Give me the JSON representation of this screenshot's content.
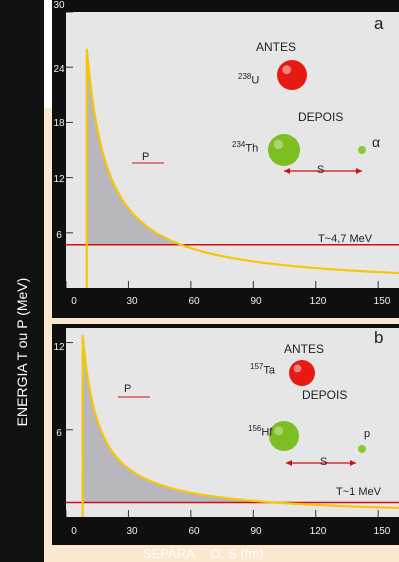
{
  "ylabel": "ENERGIA T ou P (MeV)",
  "xlabel": "SEPARA¨ ¨ O, S (fm)",
  "panel_a": {
    "letter": "a",
    "antes_label": "ANTES",
    "depois_label": "DEPOIS",
    "parent_mass": "238",
    "parent_symbol": "U",
    "daughter_mass": "234",
    "daughter_symbol": "Th",
    "particle_label": "α",
    "s_label": "S",
    "p_label": "P",
    "t_label": "T~4,7 MeV",
    "colors": {
      "parent": "#e81a14",
      "daughter": "#7dbe23",
      "particle": "#8cc832",
      "line": "#cc1111",
      "curve": "#f5c60a"
    }
  },
  "panel_b": {
    "letter": "b",
    "antes_label": "ANTES",
    "depois_label": "DEPOIS",
    "parent_mass": "157",
    "parent_symbol": "Ta",
    "daughter_mass": "156",
    "daughter_symbol": "Hf",
    "particle_label": "p",
    "s_label": "S",
    "p_label": "P",
    "t_label": "T~1 MeV",
    "colors": {
      "parent": "#e81a14",
      "daughter": "#7dbe23",
      "particle": "#8cc832",
      "line": "#cc1111",
      "curve": "#f5c60a"
    }
  },
  "chart_data": [
    {
      "type": "line",
      "x_ticks": [
        "0",
        "30",
        "60",
        "90",
        "120",
        "150"
      ],
      "y_ticks": [
        "6",
        "12",
        "18",
        "24",
        "30"
      ],
      "xlim": [
        0,
        160
      ],
      "ylim": [
        0,
        30
      ],
      "series": [
        {
          "values": [
            [
              10,
              26
            ],
            [
              20,
              13
            ],
            [
              30,
              8.7
            ],
            [
              40,
              6.5
            ],
            [
              50,
              5.2
            ],
            [
              60,
              4.3
            ],
            [
              80,
              3.3
            ],
            [
              100,
              2.6
            ],
            [
              120,
              2.2
            ],
            [
              140,
              1.9
            ],
            [
              160,
              1.6
            ]
          ]
        }
      ],
      "threshold": 4.7,
      "barrier_start": 10
    },
    {
      "type": "line",
      "x_ticks": [
        "0",
        "30",
        "60",
        "90",
        "120",
        "150"
      ],
      "y_ticks": [
        "6",
        "12"
      ],
      "xlim": [
        0,
        160
      ],
      "ylim": [
        0,
        13
      ],
      "series": [
        {
          "values": [
            [
              8,
              12.5
            ],
            [
              20,
              5
            ],
            [
              30,
              3.3
            ],
            [
              40,
              2.5
            ],
            [
              60,
              1.7
            ],
            [
              80,
              1.25
            ],
            [
              100,
              1.0
            ],
            [
              120,
              0.83
            ],
            [
              140,
              0.71
            ],
            [
              160,
              0.62
            ]
          ]
        }
      ],
      "threshold": 1,
      "barrier_start": 8
    }
  ]
}
